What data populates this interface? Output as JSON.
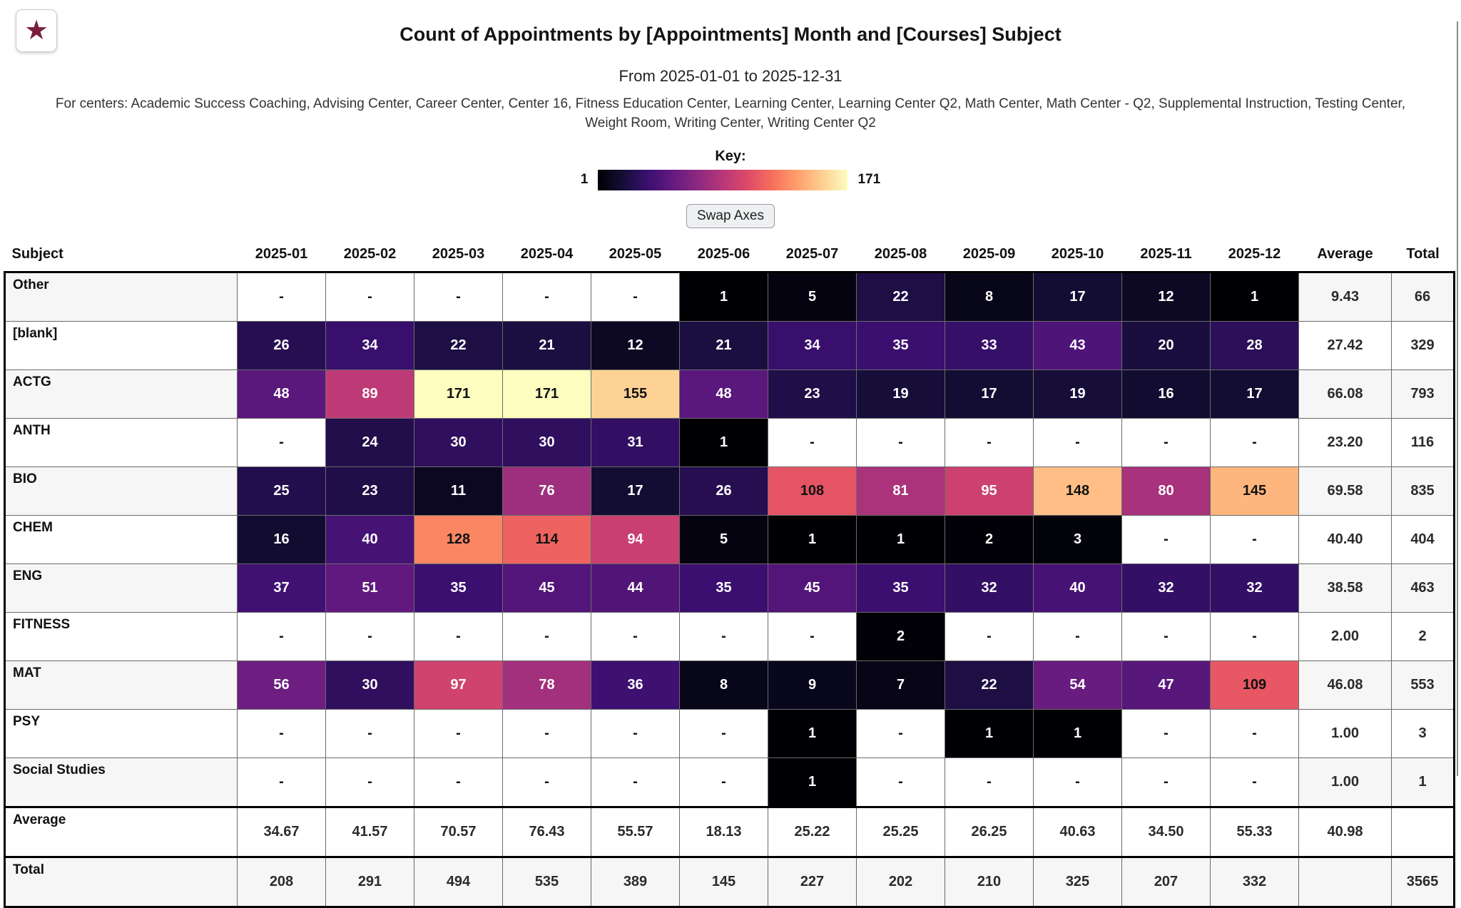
{
  "page": {
    "title": "Count of Appointments by [Appointments] Month and [Courses] Subject",
    "date_range": "From 2025-01-01 to 2025-12-31",
    "centers_note": "For centers: Academic Success Coaching, Advising Center, Career Center, Center 16, Fitness Education Center, Learning Center, Learning Center Q2, Math Center, Math Center - Q2, Supplemental Instruction, Testing Center, Weight Room, Writing Center, Writing Center Q2"
  },
  "controls": {
    "favorite_icon": "★",
    "swap_axes_label": "Swap Axes"
  },
  "key": {
    "label": "Key:",
    "min_label": "1",
    "max_label": "171"
  },
  "table": {
    "subject_header": "Subject",
    "average_header": "Average",
    "total_header": "Total",
    "empty_symbol": "-"
  },
  "colors": {
    "star": "#7b1e3e",
    "row_stripe": "#f6f6f6",
    "table_frame": "#000000",
    "cell_grid": "#6b6b6b",
    "dark_cell_text": "#ffffff",
    "light_cell_text": "#111111"
  },
  "colormap": {
    "name": "magma",
    "domain": [
      1,
      171
    ],
    "black_text_threshold": 0.6,
    "stops": [
      [
        0.0,
        "#000004"
      ],
      [
        0.1,
        "#140e36"
      ],
      [
        0.2,
        "#3b0f70"
      ],
      [
        0.3,
        "#641a80"
      ],
      [
        0.4,
        "#8c2981"
      ],
      [
        0.5,
        "#b73779"
      ],
      [
        0.6,
        "#de4968"
      ],
      [
        0.7,
        "#f7705c"
      ],
      [
        0.8,
        "#fe9f6d"
      ],
      [
        0.9,
        "#fecf92"
      ],
      [
        1.0,
        "#fcfdbf"
      ]
    ]
  },
  "chart_data": {
    "type": "heatmap",
    "title": "Count of Appointments by [Appointments] Month and [Courses] Subject",
    "subtitle": "From 2025-01-01 to 2025-12-31",
    "legend": {
      "label": "Key:",
      "min": 1,
      "max": 171
    },
    "x": [
      "2025-01",
      "2025-02",
      "2025-03",
      "2025-04",
      "2025-05",
      "2025-06",
      "2025-07",
      "2025-08",
      "2025-09",
      "2025-10",
      "2025-11",
      "2025-12"
    ],
    "rows": [
      {
        "label": "Other",
        "values": [
          null,
          null,
          null,
          null,
          null,
          1,
          5,
          22,
          8,
          17,
          12,
          1
        ],
        "average": "9.43",
        "total": 66
      },
      {
        "label": "[blank]",
        "values": [
          26,
          34,
          22,
          21,
          12,
          21,
          34,
          35,
          33,
          43,
          20,
          28
        ],
        "average": "27.42",
        "total": 329
      },
      {
        "label": "ACTG",
        "values": [
          48,
          89,
          171,
          171,
          155,
          48,
          23,
          19,
          17,
          19,
          16,
          17
        ],
        "average": "66.08",
        "total": 793
      },
      {
        "label": "ANTH",
        "values": [
          null,
          24,
          30,
          30,
          31,
          1,
          null,
          null,
          null,
          null,
          null,
          null
        ],
        "average": "23.20",
        "total": 116
      },
      {
        "label": "BIO",
        "values": [
          25,
          23,
          11,
          76,
          17,
          26,
          108,
          81,
          95,
          148,
          80,
          145
        ],
        "average": "69.58",
        "total": 835
      },
      {
        "label": "CHEM",
        "values": [
          16,
          40,
          128,
          114,
          94,
          5,
          1,
          1,
          2,
          3,
          null,
          null
        ],
        "average": "40.40",
        "total": 404
      },
      {
        "label": "ENG",
        "values": [
          37,
          51,
          35,
          45,
          44,
          35,
          45,
          35,
          32,
          40,
          32,
          32
        ],
        "average": "38.58",
        "total": 463
      },
      {
        "label": "FITNESS",
        "values": [
          null,
          null,
          null,
          null,
          null,
          null,
          null,
          2,
          null,
          null,
          null,
          null
        ],
        "average": "2.00",
        "total": 2
      },
      {
        "label": "MAT",
        "values": [
          56,
          30,
          97,
          78,
          36,
          8,
          9,
          7,
          22,
          54,
          47,
          109
        ],
        "average": "46.08",
        "total": 553
      },
      {
        "label": "PSY",
        "values": [
          null,
          null,
          null,
          null,
          null,
          null,
          1,
          null,
          1,
          1,
          null,
          null
        ],
        "average": "1.00",
        "total": 3
      },
      {
        "label": "Social Studies",
        "values": [
          null,
          null,
          null,
          null,
          null,
          null,
          1,
          null,
          null,
          null,
          null,
          null
        ],
        "average": "1.00",
        "total": 1
      }
    ],
    "column_averages": [
      "34.67",
      "41.57",
      "70.57",
      "76.43",
      "55.57",
      "18.13",
      "25.22",
      "25.25",
      "26.25",
      "40.63",
      "34.50",
      "55.33"
    ],
    "column_totals": [
      208,
      291,
      494,
      535,
      389,
      145,
      227,
      202,
      210,
      325,
      207,
      332
    ],
    "grand_average": "40.98",
    "grand_total": 3565
  }
}
